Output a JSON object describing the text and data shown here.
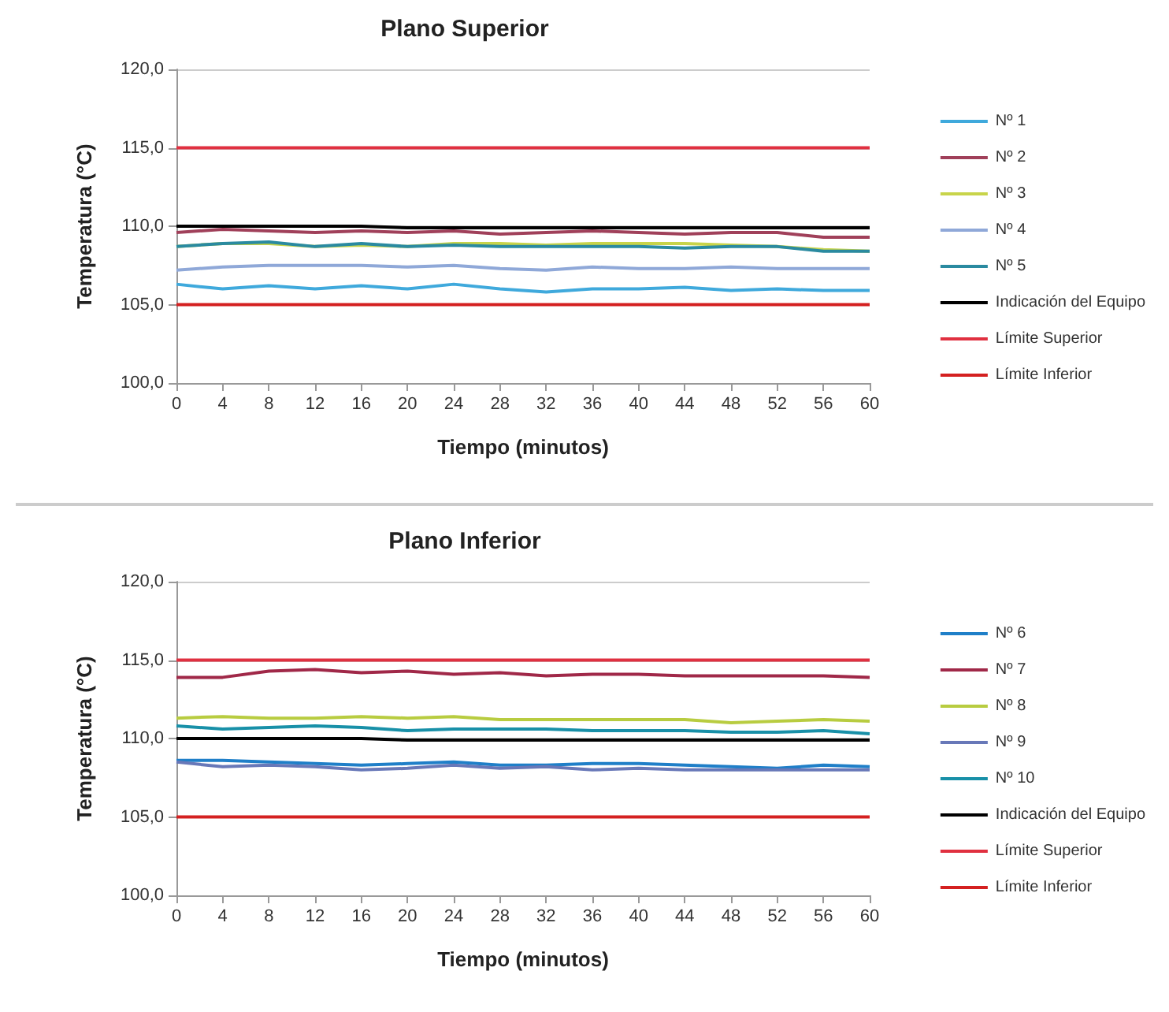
{
  "chart_data": [
    {
      "type": "line",
      "title": "Plano Superior",
      "xlabel": "Tiempo (minutos)",
      "ylabel": "Temperatura (°C)",
      "x": [
        0,
        4,
        8,
        12,
        16,
        20,
        24,
        28,
        32,
        36,
        40,
        44,
        48,
        52,
        56,
        60
      ],
      "series": [
        {
          "name": "Nº 1",
          "color": "#3fa9dc",
          "values": [
            106.3,
            106.0,
            106.2,
            106.0,
            106.2,
            106.0,
            106.3,
            106.0,
            105.8,
            106.0,
            106.0,
            106.1,
            105.9,
            106.0,
            105.9,
            105.9
          ]
        },
        {
          "name": "Nº 2",
          "color": "#a0405a",
          "values": [
            109.6,
            109.8,
            109.7,
            109.6,
            109.7,
            109.6,
            109.7,
            109.5,
            109.6,
            109.7,
            109.6,
            109.5,
            109.6,
            109.6,
            109.3,
            109.3
          ]
        },
        {
          "name": "Nº 3",
          "color": "#c8d44a",
          "values": [
            108.7,
            108.9,
            108.9,
            108.7,
            108.8,
            108.7,
            108.9,
            108.9,
            108.8,
            108.9,
            108.9,
            108.9,
            108.8,
            108.7,
            108.5,
            108.4
          ]
        },
        {
          "name": "Nº 4",
          "color": "#8fa8d8",
          "values": [
            107.2,
            107.4,
            107.5,
            107.5,
            107.5,
            107.4,
            107.5,
            107.3,
            107.2,
            107.4,
            107.3,
            107.3,
            107.4,
            107.3,
            107.3,
            107.3
          ]
        },
        {
          "name": "Nº 5",
          "color": "#2a8aa0",
          "values": [
            108.7,
            108.9,
            109.0,
            108.7,
            108.9,
            108.7,
            108.8,
            108.7,
            108.7,
            108.7,
            108.7,
            108.6,
            108.7,
            108.7,
            108.4,
            108.4
          ]
        },
        {
          "name": "Indicación del Equipo",
          "color": "#000000",
          "values": [
            110.0,
            110.0,
            110.0,
            110.0,
            110.0,
            109.9,
            109.9,
            109.9,
            109.9,
            109.9,
            109.9,
            109.9,
            109.9,
            109.9,
            109.9,
            109.9
          ]
        },
        {
          "name": "Límite Superior",
          "color": "#e03040",
          "values": [
            115,
            115,
            115,
            115,
            115,
            115,
            115,
            115,
            115,
            115,
            115,
            115,
            115,
            115,
            115,
            115
          ]
        },
        {
          "name": "Límite Inferior",
          "color": "#d42020",
          "values": [
            105,
            105,
            105,
            105,
            105,
            105,
            105,
            105,
            105,
            105,
            105,
            105,
            105,
            105,
            105,
            105
          ]
        }
      ],
      "xlim": [
        0,
        60
      ],
      "xticks": [
        0,
        4,
        8,
        12,
        16,
        20,
        24,
        28,
        32,
        36,
        40,
        44,
        48,
        52,
        56,
        60
      ],
      "ylim": [
        100,
        120
      ],
      "yticks": [
        {
          "value": 100,
          "label": "100,0"
        },
        {
          "value": 105,
          "label": "105,0"
        },
        {
          "value": 110,
          "label": "110,0"
        },
        {
          "value": 115,
          "label": "115,0"
        },
        {
          "value": 120,
          "label": "120,0"
        }
      ],
      "grid": "y",
      "legend": "right",
      "marker": "none",
      "line_style": "solid"
    },
    {
      "type": "line",
      "title": "Plano Inferior",
      "xlabel": "Tiempo (minutos)",
      "ylabel": "Temperatura (°C)",
      "x": [
        0,
        4,
        8,
        12,
        16,
        20,
        24,
        28,
        32,
        36,
        40,
        44,
        48,
        52,
        56,
        60
      ],
      "series": [
        {
          "name": "Nº 6",
          "color": "#1f7fc8",
          "values": [
            108.6,
            108.6,
            108.5,
            108.4,
            108.3,
            108.4,
            108.5,
            108.3,
            108.3,
            108.4,
            108.4,
            108.3,
            108.2,
            108.1,
            108.3,
            108.2
          ]
        },
        {
          "name": "Nº 7",
          "color": "#a02848",
          "values": [
            113.9,
            113.9,
            114.3,
            114.4,
            114.2,
            114.3,
            114.1,
            114.2,
            114.0,
            114.1,
            114.1,
            114.0,
            114.0,
            114.0,
            114.0,
            113.9
          ]
        },
        {
          "name": "Nº 8",
          "color": "#b8cc40",
          "values": [
            111.3,
            111.4,
            111.3,
            111.3,
            111.4,
            111.3,
            111.4,
            111.2,
            111.2,
            111.2,
            111.2,
            111.2,
            111.0,
            111.1,
            111.2,
            111.1
          ]
        },
        {
          "name": "Nº 9",
          "color": "#6878b8",
          "values": [
            108.5,
            108.2,
            108.3,
            108.2,
            108.0,
            108.1,
            108.3,
            108.1,
            108.2,
            108.0,
            108.1,
            108.0,
            108.0,
            108.0,
            108.0,
            108.0
          ]
        },
        {
          "name": "Nº 10",
          "color": "#1890a8",
          "values": [
            110.8,
            110.6,
            110.7,
            110.8,
            110.7,
            110.5,
            110.6,
            110.6,
            110.6,
            110.5,
            110.5,
            110.5,
            110.4,
            110.4,
            110.5,
            110.3
          ]
        },
        {
          "name": "Indicación del Equipo",
          "color": "#000000",
          "values": [
            110.0,
            110.0,
            110.0,
            110.0,
            110.0,
            109.9,
            109.9,
            109.9,
            109.9,
            109.9,
            109.9,
            109.9,
            109.9,
            109.9,
            109.9,
            109.9
          ]
        },
        {
          "name": "Límite Superior",
          "color": "#e03040",
          "values": [
            115,
            115,
            115,
            115,
            115,
            115,
            115,
            115,
            115,
            115,
            115,
            115,
            115,
            115,
            115,
            115
          ]
        },
        {
          "name": "Límite Inferior",
          "color": "#d42020",
          "values": [
            105,
            105,
            105,
            105,
            105,
            105,
            105,
            105,
            105,
            105,
            105,
            105,
            105,
            105,
            105,
            105
          ]
        }
      ],
      "xlim": [
        0,
        60
      ],
      "xticks": [
        0,
        4,
        8,
        12,
        16,
        20,
        24,
        28,
        32,
        36,
        40,
        44,
        48,
        52,
        56,
        60
      ],
      "ylim": [
        100,
        120
      ],
      "yticks": [
        {
          "value": 100,
          "label": "100,0"
        },
        {
          "value": 105,
          "label": "105,0"
        },
        {
          "value": 110,
          "label": "110,0"
        },
        {
          "value": 115,
          "label": "115,0"
        },
        {
          "value": 120,
          "label": "120,0"
        }
      ],
      "grid": "y",
      "legend": "right",
      "marker": "none",
      "line_style": "solid"
    }
  ]
}
